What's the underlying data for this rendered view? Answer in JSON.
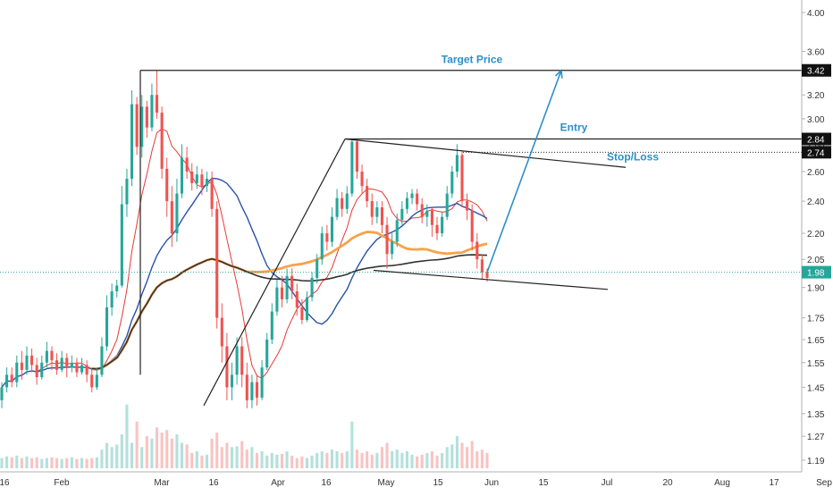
{
  "chart_data": {
    "type": "candlestick",
    "scale": "log",
    "ylim": [
      1.17,
      4.1
    ],
    "grid": false,
    "price_axis_ticks": [
      1.19,
      1.27,
      1.35,
      1.45,
      1.55,
      1.65,
      1.75,
      1.9,
      2.05,
      2.2,
      2.4,
      2.6,
      2.8,
      3.0,
      3.2,
      3.4,
      3.6,
      4.0
    ],
    "price_axis_labels": [
      "1.19",
      "1.27",
      "1.35",
      "1.45",
      "1.55",
      "1.65",
      "1.75",
      "1.90",
      "2.05",
      "2.20",
      "2.40",
      "2.60",
      "2.80",
      "3.00",
      "3.20",
      "3.40",
      "3.60",
      "4.00"
    ],
    "highlighted_levels": [
      {
        "value": 3.42,
        "label": "3.42",
        "style": "dark"
      },
      {
        "value": 2.84,
        "label": "2.84",
        "style": "dark"
      },
      {
        "value": 2.74,
        "label": "2.74",
        "style": "dark"
      },
      {
        "value": 1.98,
        "label": "1.98",
        "style": "green"
      }
    ],
    "time_axis_labels": [
      "16",
      "Feb",
      "Mar",
      "16",
      "Apr",
      "16",
      "May",
      "15",
      "Jun",
      "15",
      "Jul",
      "20",
      "Aug",
      "17",
      "Sep"
    ],
    "annotations": [
      {
        "text": "Target Price",
        "value": 3.42
      },
      {
        "text": "Entry",
        "value": 2.84
      },
      {
        "text": "Stop/Loss",
        "value": 2.74
      }
    ],
    "candles": [
      [
        1.4,
        1.45,
        1.47,
        1.37
      ],
      [
        1.45,
        1.5,
        1.53,
        1.43
      ],
      [
        1.5,
        1.47,
        1.53,
        1.45
      ],
      [
        1.47,
        1.55,
        1.58,
        1.45
      ],
      [
        1.55,
        1.52,
        1.6,
        1.48
      ],
      [
        1.52,
        1.58,
        1.62,
        1.5
      ],
      [
        1.58,
        1.54,
        1.61,
        1.51
      ],
      [
        1.54,
        1.49,
        1.57,
        1.46
      ],
      [
        1.49,
        1.55,
        1.58,
        1.48
      ],
      [
        1.55,
        1.6,
        1.64,
        1.53
      ],
      [
        1.6,
        1.56,
        1.62,
        1.52
      ],
      [
        1.56,
        1.52,
        1.59,
        1.5
      ],
      [
        1.52,
        1.57,
        1.6,
        1.51
      ],
      [
        1.57,
        1.53,
        1.59,
        1.49
      ],
      [
        1.53,
        1.55,
        1.58,
        1.51
      ],
      [
        1.55,
        1.51,
        1.57,
        1.49
      ],
      [
        1.51,
        1.54,
        1.57,
        1.5
      ],
      [
        1.54,
        1.5,
        1.56,
        1.47
      ],
      [
        1.5,
        1.45,
        1.52,
        1.43
      ],
      [
        1.45,
        1.5,
        1.53,
        1.44
      ],
      [
        1.5,
        1.62,
        1.66,
        1.49
      ],
      [
        1.62,
        1.8,
        1.86,
        1.6
      ],
      [
        1.8,
        1.88,
        1.92,
        1.76
      ],
      [
        1.88,
        1.91,
        1.94,
        1.85
      ],
      [
        1.91,
        2.38,
        2.5,
        1.9
      ],
      [
        2.38,
        2.55,
        2.62,
        2.3
      ],
      [
        2.55,
        3.12,
        3.24,
        2.5
      ],
      [
        3.12,
        2.78,
        3.18,
        2.72
      ],
      [
        2.78,
        3.1,
        3.2,
        2.7
      ],
      [
        3.1,
        2.93,
        3.15,
        2.85
      ],
      [
        2.93,
        3.2,
        3.3,
        2.9
      ],
      [
        3.2,
        3.05,
        3.42,
        3.0
      ],
      [
        3.05,
        2.62,
        3.1,
        2.55
      ],
      [
        2.62,
        2.4,
        2.7,
        2.3
      ],
      [
        2.4,
        2.2,
        2.5,
        2.12
      ],
      [
        2.2,
        2.45,
        2.55,
        2.15
      ],
      [
        2.45,
        2.7,
        2.8,
        2.42
      ],
      [
        2.7,
        2.6,
        2.78,
        2.55
      ],
      [
        2.6,
        2.52,
        2.66,
        2.47
      ],
      [
        2.52,
        2.58,
        2.64,
        2.48
      ],
      [
        2.58,
        2.5,
        2.62,
        2.44
      ],
      [
        2.5,
        2.55,
        2.6,
        2.46
      ],
      [
        2.55,
        2.35,
        2.6,
        2.3
      ],
      [
        2.35,
        1.75,
        2.4,
        1.7
      ],
      [
        1.75,
        1.62,
        1.82,
        1.55
      ],
      [
        1.62,
        1.45,
        1.68,
        1.4
      ],
      [
        1.45,
        1.5,
        1.55,
        1.4
      ],
      [
        1.5,
        1.62,
        1.66,
        1.46
      ],
      [
        1.62,
        1.5,
        1.66,
        1.45
      ],
      [
        1.5,
        1.4,
        1.55,
        1.37
      ],
      [
        1.4,
        1.47,
        1.5,
        1.37
      ],
      [
        1.47,
        1.41,
        1.5,
        1.38
      ],
      [
        1.41,
        1.53,
        1.56,
        1.4
      ],
      [
        1.53,
        1.65,
        1.68,
        1.52
      ],
      [
        1.65,
        1.78,
        1.82,
        1.63
      ],
      [
        1.78,
        1.9,
        1.94,
        1.76
      ],
      [
        1.9,
        1.84,
        1.96,
        1.8
      ],
      [
        1.84,
        1.96,
        2.0,
        1.82
      ],
      [
        1.96,
        1.88,
        2.0,
        1.84
      ],
      [
        1.88,
        1.8,
        1.92,
        1.76
      ],
      [
        1.8,
        1.74,
        1.84,
        1.72
      ],
      [
        1.74,
        1.85,
        1.88,
        1.73
      ],
      [
        1.85,
        1.95,
        1.98,
        1.83
      ],
      [
        1.95,
        2.05,
        2.08,
        1.92
      ],
      [
        2.05,
        2.2,
        2.24,
        2.02
      ],
      [
        2.2,
        2.15,
        2.25,
        2.1
      ],
      [
        2.15,
        2.3,
        2.36,
        2.12
      ],
      [
        2.3,
        2.42,
        2.48,
        2.28
      ],
      [
        2.42,
        2.35,
        2.46,
        2.3
      ],
      [
        2.35,
        2.45,
        2.5,
        2.32
      ],
      [
        2.45,
        2.82,
        2.84,
        2.43
      ],
      [
        2.82,
        2.6,
        2.84,
        2.55
      ],
      [
        2.6,
        2.5,
        2.65,
        2.45
      ],
      [
        2.5,
        2.4,
        2.55,
        2.36
      ],
      [
        2.4,
        2.3,
        2.45,
        2.25
      ],
      [
        2.3,
        2.36,
        2.4,
        2.26
      ],
      [
        2.36,
        2.25,
        2.4,
        2.2
      ],
      [
        2.25,
        2.08,
        2.3,
        2.0
      ],
      [
        2.08,
        2.15,
        2.2,
        2.05
      ],
      [
        2.15,
        2.28,
        2.32,
        2.12
      ],
      [
        2.28,
        2.35,
        2.4,
        2.25
      ],
      [
        2.35,
        2.42,
        2.46,
        2.32
      ],
      [
        2.42,
        2.45,
        2.48,
        2.38
      ],
      [
        2.45,
        2.38,
        2.48,
        2.34
      ],
      [
        2.38,
        2.3,
        2.42,
        2.26
      ],
      [
        2.3,
        2.34,
        2.38,
        2.24
      ],
      [
        2.34,
        2.25,
        2.36,
        2.18
      ],
      [
        2.25,
        2.2,
        2.3,
        2.16
      ],
      [
        2.2,
        2.3,
        2.33,
        2.18
      ],
      [
        2.3,
        2.45,
        2.5,
        2.28
      ],
      [
        2.45,
        2.6,
        2.64,
        2.42
      ],
      [
        2.6,
        2.72,
        2.8,
        2.56
      ],
      [
        2.72,
        2.4,
        2.75,
        2.36
      ],
      [
        2.4,
        2.34,
        2.45,
        2.28
      ],
      [
        2.34,
        2.15,
        2.38,
        2.1
      ],
      [
        2.15,
        2.05,
        2.2,
        2.0
      ],
      [
        2.05,
        1.98,
        2.08,
        1.94
      ],
      [
        1.98,
        1.95,
        2.0,
        1.93
      ]
    ],
    "volumes": [
      12,
      14,
      13,
      15,
      12,
      14,
      12,
      13,
      11,
      12,
      13,
      12,
      11,
      12,
      13,
      11,
      12,
      11,
      12,
      13,
      22,
      30,
      25,
      28,
      40,
      75,
      30,
      55,
      25,
      38,
      35,
      48,
      42,
      45,
      35,
      40,
      30,
      28,
      18,
      20,
      15,
      16,
      35,
      42,
      25,
      30,
      25,
      26,
      32,
      22,
      25,
      18,
      20,
      15,
      18,
      16,
      17,
      20,
      15,
      12,
      14,
      12,
      15,
      18,
      20,
      18,
      22,
      20,
      18,
      20,
      55,
      22,
      18,
      20,
      16,
      18,
      25,
      30,
      20,
      22,
      18,
      20,
      16,
      14,
      16,
      18,
      20,
      15,
      18,
      25,
      28,
      38,
      30,
      25,
      32,
      20,
      22,
      18
    ],
    "moving_averages": [
      {
        "color": "#e53935",
        "width": 1
      },
      {
        "color": "#2952a8",
        "width": 1.4
      },
      {
        "color": "#f7a24b",
        "width": 2.8
      },
      {
        "color": "#333333",
        "width": 1.6
      }
    ],
    "colors": {
      "up": "#26a69a",
      "down": "#ef5350",
      "target_line": "#2b8fc9",
      "annotation_text": "#2b8fc9",
      "axis_text": "#333333"
    }
  }
}
